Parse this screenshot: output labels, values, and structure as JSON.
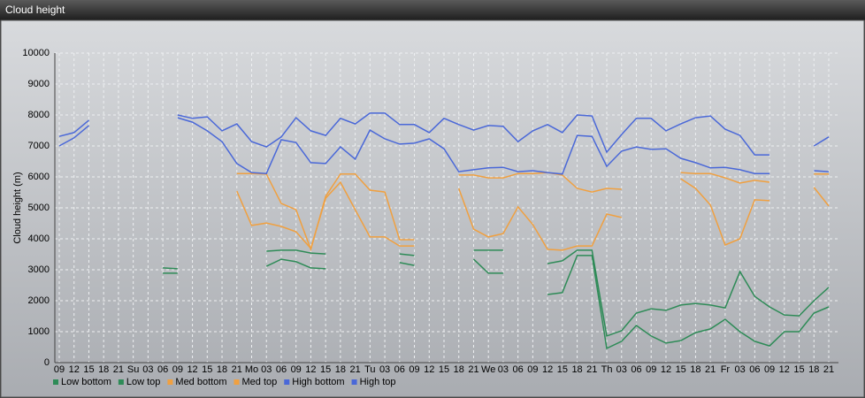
{
  "window_title": "Cloud height",
  "chart_data": {
    "type": "line",
    "y_label": "Cloud height (m)",
    "categories": [
      "09",
      "12",
      "15",
      "18",
      "21",
      "Su",
      "03",
      "06",
      "09",
      "12",
      "15",
      "18",
      "21",
      "Mo",
      "03",
      "06",
      "09",
      "12",
      "15",
      "18",
      "21",
      "Tu",
      "03",
      "06",
      "09",
      "12",
      "15",
      "18",
      "21",
      "We",
      "03",
      "06",
      "09",
      "12",
      "15",
      "18",
      "21",
      "Th",
      "03",
      "06",
      "09",
      "12",
      "15",
      "18",
      "21",
      "Fr",
      "03",
      "06",
      "09",
      "12",
      "15",
      "18",
      "21"
    ],
    "ylim": [
      0,
      10000
    ],
    "yticks": [
      0,
      1000,
      2000,
      3000,
      4000,
      5000,
      6000,
      7000,
      8000,
      9000,
      10000
    ],
    "grid": true,
    "legend": "bottom-left",
    "series": [
      {
        "name": "Low bottom",
        "color": "#2e8b57",
        "values": [
          null,
          null,
          null,
          null,
          null,
          null,
          null,
          2890,
          2890,
          null,
          null,
          null,
          null,
          null,
          3110,
          3340,
          3260,
          3060,
          3030,
          null,
          null,
          null,
          null,
          3230,
          3140,
          null,
          null,
          null,
          3340,
          2890,
          2890,
          null,
          null,
          2200,
          2260,
          3460,
          3460,
          460,
          690,
          1200,
          860,
          630,
          710,
          970,
          1090,
          1400,
          1000,
          690,
          540,
          1000,
          1000,
          1600,
          1800
        ]
      },
      {
        "name": "Low top",
        "color": "#2e8b57",
        "values": [
          null,
          null,
          null,
          null,
          null,
          null,
          null,
          3060,
          3030,
          null,
          null,
          null,
          null,
          null,
          3600,
          3630,
          3630,
          3540,
          3510,
          null,
          null,
          null,
          null,
          3510,
          3460,
          null,
          null,
          null,
          3630,
          3630,
          3630,
          null,
          null,
          3200,
          3290,
          3630,
          3630,
          860,
          1030,
          1600,
          1740,
          1690,
          1860,
          1910,
          1860,
          1770,
          2940,
          2140,
          1800,
          1540,
          1510,
          2000,
          2430
        ]
      },
      {
        "name": "Med bottom",
        "color": "#f0a040",
        "values": [
          null,
          null,
          null,
          null,
          null,
          null,
          null,
          null,
          null,
          null,
          null,
          null,
          5540,
          4430,
          4510,
          4400,
          4230,
          3690,
          5310,
          5830,
          4940,
          4060,
          4060,
          3770,
          3770,
          null,
          null,
          5630,
          4310,
          4060,
          4170,
          5030,
          4460,
          3660,
          3630,
          3770,
          3770,
          4800,
          4690,
          null,
          null,
          null,
          5940,
          5630,
          5090,
          3800,
          4000,
          5260,
          5230,
          null,
          null,
          5660,
          5060
        ]
      },
      {
        "name": "Med top",
        "color": "#f0a040",
        "values": [
          null,
          null,
          null,
          null,
          null,
          null,
          null,
          null,
          null,
          null,
          null,
          null,
          6110,
          6110,
          6090,
          5140,
          4940,
          3660,
          5370,
          6090,
          6090,
          5570,
          5510,
          3970,
          3970,
          null,
          null,
          6060,
          6060,
          5970,
          5970,
          6110,
          6110,
          6140,
          6060,
          5630,
          5510,
          5630,
          5600,
          null,
          null,
          null,
          6140,
          6110,
          6110,
          5970,
          5800,
          5890,
          5830,
          null,
          null,
          6090,
          6090
        ]
      },
      {
        "name": "High bottom",
        "color": "#4a68d8",
        "values": [
          7000,
          7260,
          7660,
          null,
          null,
          null,
          null,
          null,
          7910,
          7770,
          7490,
          7140,
          6430,
          6140,
          6110,
          7200,
          7110,
          6460,
          6430,
          6970,
          6570,
          7510,
          7230,
          7060,
          7090,
          7230,
          6910,
          6170,
          6230,
          6290,
          6310,
          6170,
          6200,
          6140,
          6090,
          7340,
          7310,
          6340,
          6830,
          6970,
          6890,
          6910,
          6600,
          6460,
          6290,
          6310,
          6230,
          6110,
          6110,
          null,
          null,
          6200,
          6170
        ]
      },
      {
        "name": "High top",
        "color": "#4a68d8",
        "values": [
          7310,
          7430,
          7830,
          null,
          null,
          null,
          null,
          null,
          8000,
          7890,
          7940,
          7490,
          7710,
          7140,
          6970,
          7290,
          7910,
          7490,
          7340,
          7890,
          7710,
          8060,
          8060,
          7690,
          7690,
          7430,
          7890,
          7690,
          7510,
          7660,
          7630,
          7140,
          7490,
          7690,
          7430,
          8000,
          7970,
          6800,
          7370,
          7890,
          7890,
          7490,
          7710,
          7910,
          7970,
          7540,
          7340,
          6710,
          6710,
          null,
          null,
          7000,
          7290
        ]
      }
    ]
  }
}
